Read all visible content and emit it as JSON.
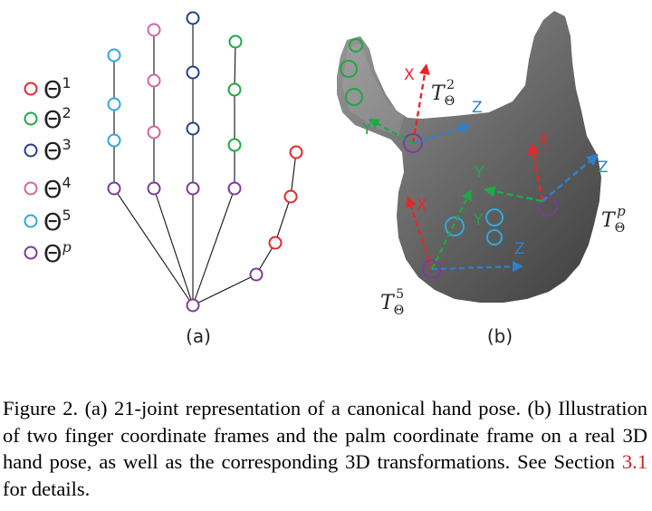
{
  "figure": {
    "panel_a_label": "(a)",
    "panel_b_label": "(b)",
    "legend": [
      {
        "symbol": "Θ",
        "sup": "1",
        "color": "#e8262a"
      },
      {
        "symbol": "Θ",
        "sup": "2",
        "color": "#1fa848"
      },
      {
        "symbol": "Θ",
        "sup": "3",
        "color": "#23408f"
      },
      {
        "symbol": "Θ",
        "sup": "4",
        "color": "#d264a8"
      },
      {
        "symbol": "Θ",
        "sup": "5",
        "color": "#31a8dc"
      },
      {
        "symbol": "Θ",
        "sup": "p",
        "color": "#7b3c96"
      }
    ],
    "frames": {
      "t2": {
        "symbol": "T",
        "sub": "Θ",
        "sup": "2"
      },
      "t5": {
        "symbol": "T",
        "sub": "Θ",
        "sup": "5"
      },
      "tp": {
        "symbol": "T",
        "sub": "Θ",
        "sup": "p"
      }
    },
    "axis_labels": {
      "x": "X",
      "y": "Y",
      "z": "Z"
    },
    "colors": {
      "x_axis": "#e8262a",
      "y_axis": "#1fa848",
      "z_axis": "#2f7fd0",
      "joint_line": "#111111"
    }
  },
  "caption": {
    "prefix": "Figure 2. (a) 21-joint representation of a canonical hand pose. (b) Illustration of two finger coordinate frames and the palm coordinate frame on a real 3D hand pose, as well as the corresponding 3D transformations. See Section ",
    "ref": "3.1",
    "suffix": " for details."
  }
}
